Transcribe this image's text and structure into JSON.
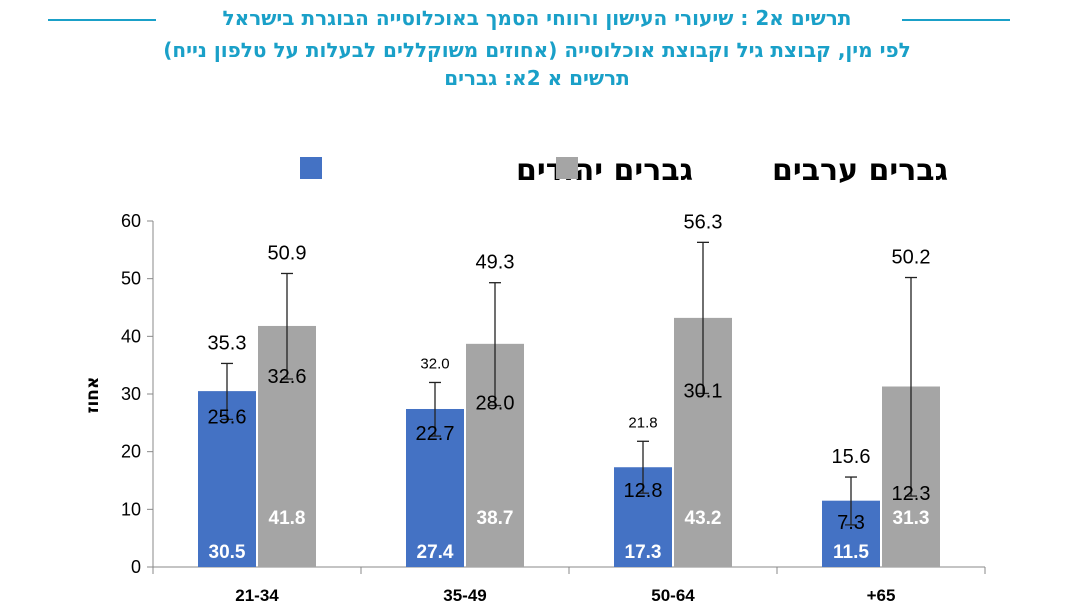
{
  "header": {
    "title_line1": "תרשים א2 : שיעורי העישון ורווחי הסמך באוכלוסייה הבוגרת בישראל",
    "title_line2": "לפי מין, קבוצת גיל וקבוצת אוכלוסייה (אחוזים משוקללים לבעלות על טלפון נייח)",
    "title_line3": "תרשים א 2א: גברים"
  },
  "colors": {
    "title": "#1aa0c8",
    "series_jewish": "#4472c4",
    "series_arab": "#a5a5a5"
  },
  "chart_data": {
    "type": "bar",
    "ylabel": "אחוז",
    "ylim": [
      0,
      60
    ],
    "yticks": [
      0,
      10,
      20,
      30,
      40,
      50,
      60
    ],
    "categories": [
      "21-34",
      "35-49",
      "50-64",
      "+65"
    ],
    "legend_position": "top",
    "series": [
      {
        "name": "גברים יהודים",
        "values": [
          30.5,
          27.4,
          17.3,
          11.5
        ],
        "value_labels": [
          "30.5",
          "27.4",
          "17.3",
          "11.5"
        ],
        "ci_lower": [
          25.6,
          22.7,
          12.8,
          7.3
        ],
        "ci_upper": [
          35.3,
          32.0,
          21.8,
          15.6
        ],
        "ci_lower_labels": [
          "25.6",
          "22.7",
          "12.8",
          "7.3"
        ],
        "ci_upper_labels": [
          "35.3",
          "32.0",
          "21.8",
          "15.6"
        ]
      },
      {
        "name": "גברים ערבים",
        "values": [
          41.8,
          38.7,
          43.2,
          31.3
        ],
        "value_labels": [
          "41.8",
          "38.7",
          "43.2",
          "31.3"
        ],
        "ci_lower": [
          32.6,
          28.0,
          30.1,
          12.3
        ],
        "ci_upper": [
          50.9,
          49.3,
          56.3,
          50.2
        ],
        "ci_lower_labels": [
          "32.6",
          "28.0",
          "30.1",
          "12.3"
        ],
        "ci_upper_labels": [
          "50.9",
          "49.3",
          "56.3",
          "50.2"
        ]
      }
    ]
  }
}
